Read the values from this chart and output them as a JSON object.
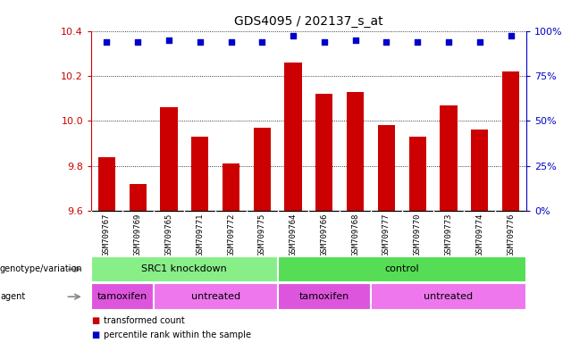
{
  "title": "GDS4095 / 202137_s_at",
  "samples": [
    "GSM709767",
    "GSM709769",
    "GSM709765",
    "GSM709771",
    "GSM709772",
    "GSM709775",
    "GSM709764",
    "GSM709766",
    "GSM709768",
    "GSM709777",
    "GSM709770",
    "GSM709773",
    "GSM709774",
    "GSM709776"
  ],
  "bar_values": [
    9.84,
    9.72,
    10.06,
    9.93,
    9.81,
    9.97,
    10.26,
    10.12,
    10.13,
    9.98,
    9.93,
    10.07,
    9.96,
    10.22
  ],
  "percentile_values": [
    10.35,
    10.35,
    10.36,
    10.35,
    10.35,
    10.35,
    10.38,
    10.35,
    10.36,
    10.35,
    10.35,
    10.35,
    10.35,
    10.38
  ],
  "bar_color": "#cc0000",
  "percentile_color": "#0000cc",
  "ylim": [
    9.6,
    10.4
  ],
  "yticks": [
    9.6,
    9.8,
    10.0,
    10.2,
    10.4
  ],
  "right_yticks": [
    0,
    25,
    50,
    75,
    100
  ],
  "genotype_groups": [
    {
      "label": "SRC1 knockdown",
      "start": 0,
      "end": 6,
      "color": "#88ee88"
    },
    {
      "label": "control",
      "start": 6,
      "end": 14,
      "color": "#55dd55"
    }
  ],
  "agent_groups": [
    {
      "label": "tamoxifen",
      "start": 0,
      "end": 2,
      "color": "#dd55dd"
    },
    {
      "label": "untreated",
      "start": 2,
      "end": 6,
      "color": "#ee77ee"
    },
    {
      "label": "tamoxifen",
      "start": 6,
      "end": 9,
      "color": "#dd55dd"
    },
    {
      "label": "untreated",
      "start": 9,
      "end": 14,
      "color": "#ee77ee"
    }
  ],
  "legend_items": [
    {
      "label": "transformed count",
      "color": "#cc0000"
    },
    {
      "label": "percentile rank within the sample",
      "color": "#0000cc"
    }
  ],
  "bar_width": 0.55,
  "ylabel_color": "#cc0000",
  "right_ylabel_color": "#0000cc",
  "tick_label_bg": "#d8d8d8"
}
